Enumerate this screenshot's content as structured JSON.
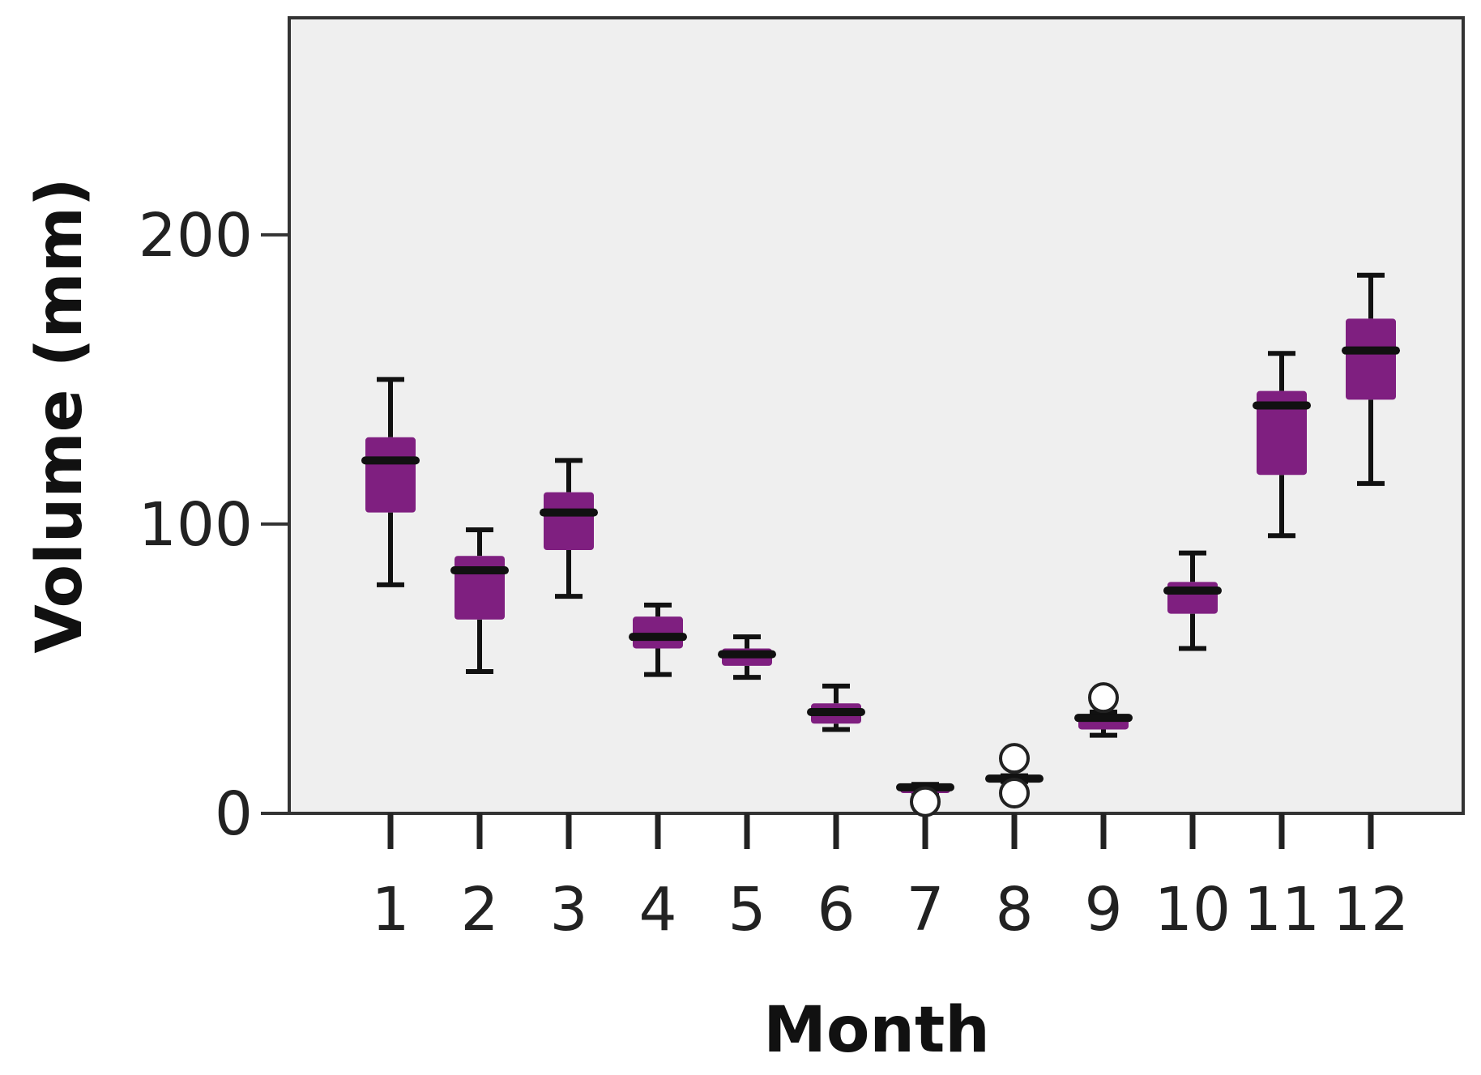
{
  "chart_data": {
    "type": "box",
    "xlabel": "Month",
    "ylabel": "Volume (mm)",
    "ylim": [
      0,
      275
    ],
    "y_ticks": [
      "0",
      "100",
      "200"
    ],
    "categories": [
      "1",
      "2",
      "3",
      "4",
      "5",
      "6",
      "7",
      "8",
      "9",
      "10",
      "11",
      "12"
    ],
    "grid": false,
    "legend": "none",
    "colors": {
      "box_fill": "#7f1f80",
      "plot_background": "#efefef",
      "whisker": "#111111"
    },
    "boxes": [
      {
        "month": "1",
        "min": 79,
        "q1": 104,
        "median": 122,
        "q3": 130,
        "max": 150,
        "outliers": []
      },
      {
        "month": "2",
        "min": 49,
        "q1": 67,
        "median": 84,
        "q3": 89,
        "max": 98,
        "outliers": []
      },
      {
        "month": "3",
        "min": 75,
        "q1": 91,
        "median": 104,
        "q3": 111,
        "max": 122,
        "outliers": []
      },
      {
        "month": "4",
        "min": 48,
        "q1": 57,
        "median": 61,
        "q3": 68,
        "max": 72,
        "outliers": []
      },
      {
        "month": "5",
        "min": 47,
        "q1": 51,
        "median": 55,
        "q3": 57,
        "max": 61,
        "outliers": []
      },
      {
        "month": "6",
        "min": 29,
        "q1": 31,
        "median": 35,
        "q3": 38,
        "max": 44,
        "outliers": []
      },
      {
        "month": "7",
        "min": 7,
        "q1": 7,
        "median": 9,
        "q3": 10,
        "max": 10,
        "outliers": [
          4
        ]
      },
      {
        "month": "8",
        "min": 11,
        "q1": 11,
        "median": 12,
        "q3": 13,
        "max": 13,
        "outliers": [
          7,
          19
        ]
      },
      {
        "month": "9",
        "min": 27,
        "q1": 29,
        "median": 33,
        "q3": 34,
        "max": 35,
        "outliers": [
          40
        ]
      },
      {
        "month": "10",
        "min": 57,
        "q1": 69,
        "median": 77,
        "q3": 80,
        "max": 90,
        "outliers": []
      },
      {
        "month": "11",
        "min": 96,
        "q1": 117,
        "median": 141,
        "q3": 146,
        "max": 159,
        "outliers": []
      },
      {
        "month": "12",
        "min": 114,
        "q1": 143,
        "median": 160,
        "q3": 171,
        "max": 186,
        "outliers": []
      }
    ]
  }
}
